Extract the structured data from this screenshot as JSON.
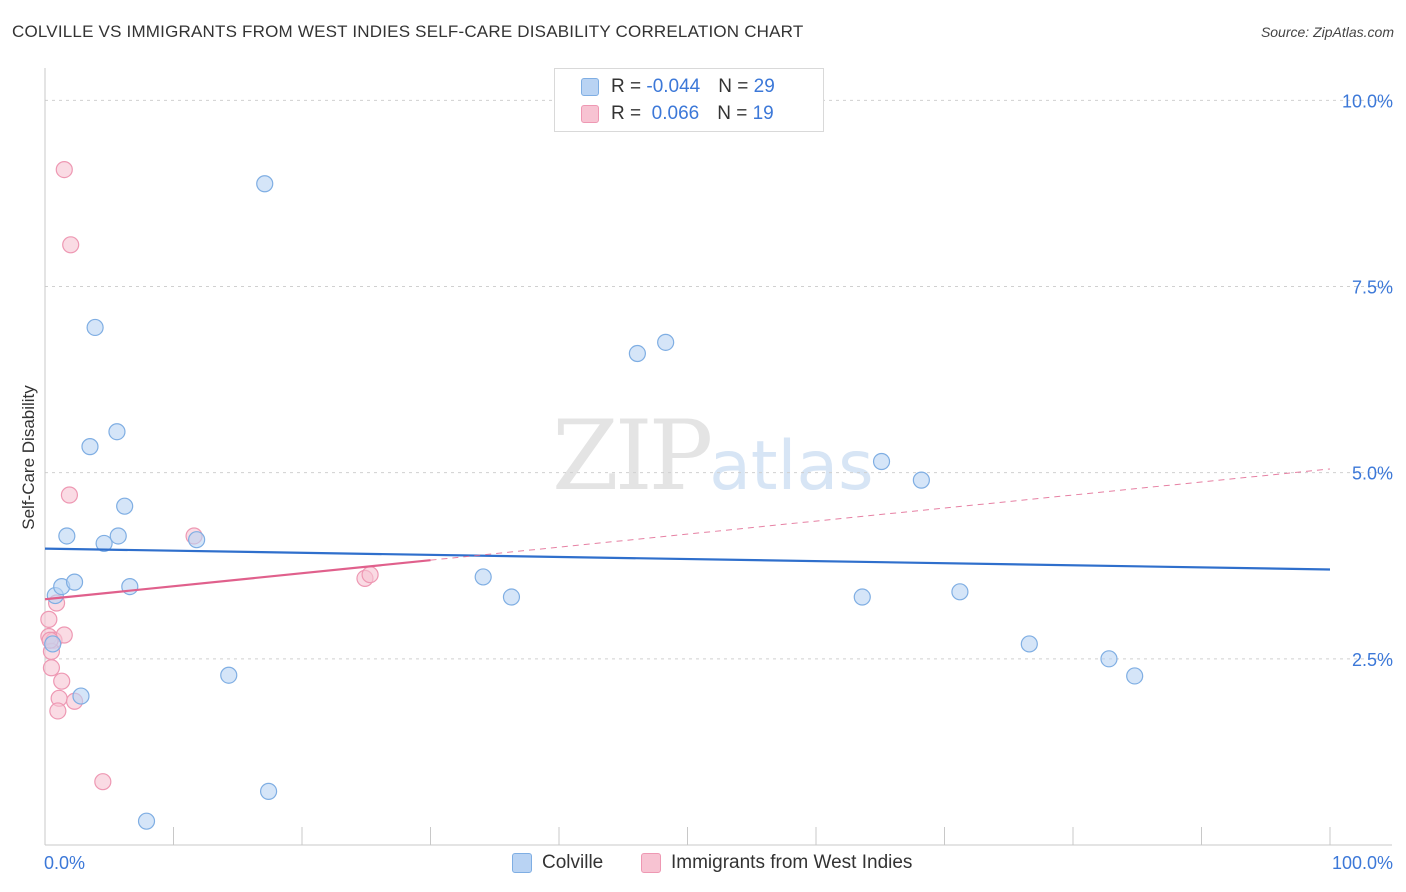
{
  "header": {
    "title": "COLVILLE VS IMMIGRANTS FROM WEST INDIES SELF-CARE DISABILITY CORRELATION CHART",
    "source": "Source: ZipAtlas.com"
  },
  "watermark": {
    "zip": "ZIP",
    "atlas": "atlas"
  },
  "legend": {
    "colville": {
      "r_label": "R = ",
      "r_value": "-0.044",
      "n_label": "N = ",
      "n_value": "29"
    },
    "westindies": {
      "r_label": "R = ",
      "r_value": " 0.066",
      "n_label": "N = ",
      "n_value": "19"
    }
  },
  "colors": {
    "blue_fill": "#b9d3f3",
    "blue_stroke": "#7faee3",
    "blue_line": "#2f6fcc",
    "pink_fill": "#f7c3d2",
    "pink_stroke": "#ee98b3",
    "pink_line": "#e0608c",
    "grid": "#d0d0d0",
    "axis_text": "#3c78d8"
  },
  "chart_data": {
    "type": "scatter",
    "title": "COLVILLE VS IMMIGRANTS FROM WEST INDIES SELF-CARE DISABILITY CORRELATION CHART",
    "xlabel": "",
    "ylabel": "Self-Care Disability",
    "xlim": [
      0,
      100
    ],
    "ylim": [
      0,
      10.3
    ],
    "x_tick_labels": [
      "0.0%",
      "100.0%"
    ],
    "y_ticks": [
      2.5,
      5.0,
      7.5,
      10.0
    ],
    "y_tick_labels": [
      "2.5%",
      "5.0%",
      "7.5%",
      "10.0%"
    ],
    "grid": true,
    "legend_position": "bottom",
    "series": [
      {
        "name": "Colville",
        "color": "#b9d3f3",
        "points": [
          [
            0.8,
            3.35
          ],
          [
            1.3,
            3.47
          ],
          [
            1.7,
            4.15
          ],
          [
            2.3,
            3.53
          ],
          [
            2.8,
            2.0
          ],
          [
            3.5,
            5.35
          ],
          [
            3.9,
            6.95
          ],
          [
            4.6,
            4.05
          ],
          [
            5.6,
            5.55
          ],
          [
            5.7,
            4.15
          ],
          [
            6.2,
            4.55
          ],
          [
            6.6,
            3.47
          ],
          [
            7.9,
            0.32
          ],
          [
            11.8,
            4.1
          ],
          [
            14.3,
            2.28
          ],
          [
            17.1,
            8.88
          ],
          [
            17.4,
            0.72
          ],
          [
            34.1,
            3.6
          ],
          [
            36.3,
            3.33
          ],
          [
            46.1,
            6.6
          ],
          [
            48.3,
            6.75
          ],
          [
            63.6,
            3.33
          ],
          [
            65.1,
            5.15
          ],
          [
            68.2,
            4.9
          ],
          [
            71.2,
            3.4
          ],
          [
            76.6,
            2.7
          ],
          [
            82.8,
            2.5
          ],
          [
            84.8,
            2.27
          ],
          [
            0.6,
            2.7
          ]
        ],
        "trend": {
          "x": [
            0,
            100
          ],
          "y": [
            3.98,
            3.7
          ]
        }
      },
      {
        "name": "Immigrants from West Indies",
        "color": "#f7c3d2",
        "points": [
          [
            1.5,
            9.07
          ],
          [
            2.0,
            8.06
          ],
          [
            1.9,
            4.7
          ],
          [
            0.9,
            3.25
          ],
          [
            0.3,
            3.03
          ],
          [
            0.3,
            2.8
          ],
          [
            0.7,
            2.75
          ],
          [
            1.5,
            2.82
          ],
          [
            0.5,
            2.6
          ],
          [
            0.5,
            2.38
          ],
          [
            1.3,
            2.2
          ],
          [
            1.1,
            1.97
          ],
          [
            2.3,
            1.93
          ],
          [
            1.0,
            1.8
          ],
          [
            4.5,
            0.85
          ],
          [
            11.6,
            4.15
          ],
          [
            24.9,
            3.58
          ],
          [
            25.3,
            3.63
          ],
          [
            0.4,
            2.75
          ]
        ],
        "trend": {
          "x": [
            0,
            100
          ],
          "y": [
            3.3,
            5.05
          ],
          "solid_until_x": 30
        }
      }
    ]
  },
  "bottom_legend": {
    "colville": "Colville",
    "westindies": "Immigrants from West Indies"
  }
}
